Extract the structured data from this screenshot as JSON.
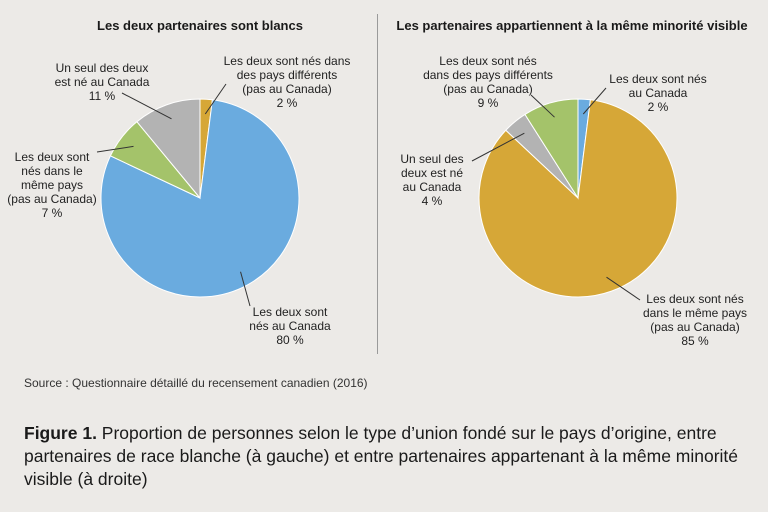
{
  "chart_data": [
    {
      "type": "pie",
      "title": "Les deux partenaires sont blancs",
      "slices": [
        {
          "label": "Les deux sont nés dans des pays différents (pas au Canada)",
          "value": 2,
          "value_label": "2 %",
          "color": "#d6a737"
        },
        {
          "label": "Les deux sont nés au Canada",
          "value": 80,
          "value_label": "80 %",
          "color": "#6aabdf"
        },
        {
          "label": "Les deux sont nés dans le même pays (pas au Canada)",
          "value": 7,
          "value_label": "7 %",
          "color": "#a4c36a"
        },
        {
          "label": "Un seul des deux est né au Canada",
          "value": 11,
          "value_label": "11 %",
          "color": "#b3b3b3"
        }
      ]
    },
    {
      "type": "pie",
      "title": "Les partenaires appartiennent à la même minorité visible",
      "slices": [
        {
          "label": "Les deux sont nés au Canada",
          "value": 2,
          "value_label": "2 %",
          "color": "#6aabdf"
        },
        {
          "label": "Les deux sont nés dans le même pays (pas au Canada)",
          "value": 85,
          "value_label": "85 %",
          "color": "#d6a737"
        },
        {
          "label": "Un seul des deux est né au Canada",
          "value": 4,
          "value_label": "4 %",
          "color": "#b3b3b3"
        },
        {
          "label": "Les deux sont nés dans des pays différents (pas au Canada)",
          "value": 9,
          "value_label": "9 %",
          "color": "#a4c36a"
        }
      ]
    }
  ],
  "labels": {
    "left": {
      "different": "Les deux sont nés dans\ndes pays différents\n(pas au Canada)\n2 %",
      "canada": "Les deux sont\nnés au Canada\n80 %",
      "same": "Les deux sont\nnés dans le\nmême pays\n(pas au Canada)\n7 %",
      "one": "Un seul des deux\nest né au Canada\n11 %"
    },
    "right": {
      "canada": "Les deux sont nés\nau Canada\n2 %",
      "same": "Les deux sont nés\ndans le même pays\n(pas au Canada)\n85 %",
      "one": "Un seul des\ndeux est né\nau Canada\n4 %",
      "different": "Les deux sont nés\ndans des pays différents\n(pas au Canada)\n9 %"
    }
  },
  "source": "Source : Questionnaire détaillé du recensement canadien (2016)",
  "caption": {
    "figure": "Figure 1.",
    "text": " Proportion de personnes selon le type d’union fondé sur le pays d’origine, entre partenaires de race blanche (à gauche) et entre partenaires appartenant à la même minorité visible (à droite)"
  }
}
